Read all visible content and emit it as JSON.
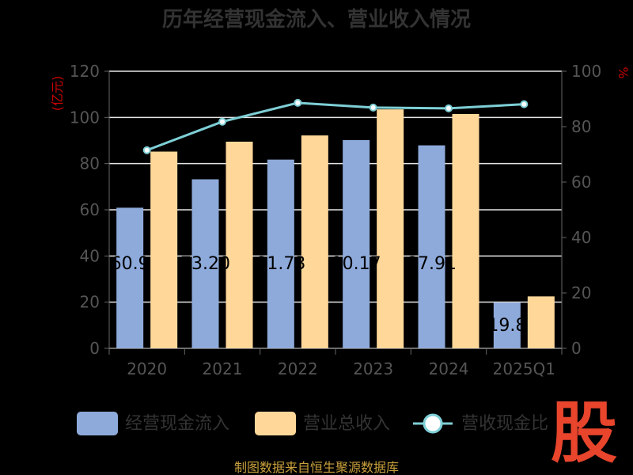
{
  "chart_data": {
    "type": "bar",
    "title": "历年经营现金流入、营业收入情况",
    "categories": [
      "2020",
      "2021",
      "2022",
      "2023",
      "2024",
      "2025Q1"
    ],
    "series": [
      {
        "name": "经营现金流入",
        "type": "bar",
        "axis": "left",
        "color": "#8EAADB",
        "values": [
          60.9,
          73.2,
          81.73,
          90.17,
          87.91,
          19.8
        ],
        "labels": [
          "60.9",
          "73.20",
          "81.73",
          "90.17",
          "87.91",
          "19.8"
        ]
      },
      {
        "name": "营业总收入",
        "type": "bar",
        "axis": "left",
        "color": "#FFD899",
        "values": [
          85.2,
          89.5,
          92.2,
          103.5,
          101.5,
          22.5
        ]
      },
      {
        "name": "营收现金比",
        "type": "line",
        "axis": "right",
        "color": "#7ECFD6",
        "values": [
          71.5,
          81.8,
          88.6,
          86.9,
          86.6,
          88.1
        ]
      }
    ],
    "y_left": {
      "label": "(亿元)",
      "min": 0,
      "max": 120,
      "ticks": [
        0,
        20,
        40,
        60,
        80,
        100,
        120
      ]
    },
    "y_right": {
      "label": "%",
      "min": 0,
      "max": 100,
      "ticks": [
        0,
        20,
        40,
        60,
        80,
        100
      ]
    },
    "grid": true,
    "legend": "bottom"
  },
  "source": "制图数据来自恒生聚源数据库",
  "stamp": "股"
}
